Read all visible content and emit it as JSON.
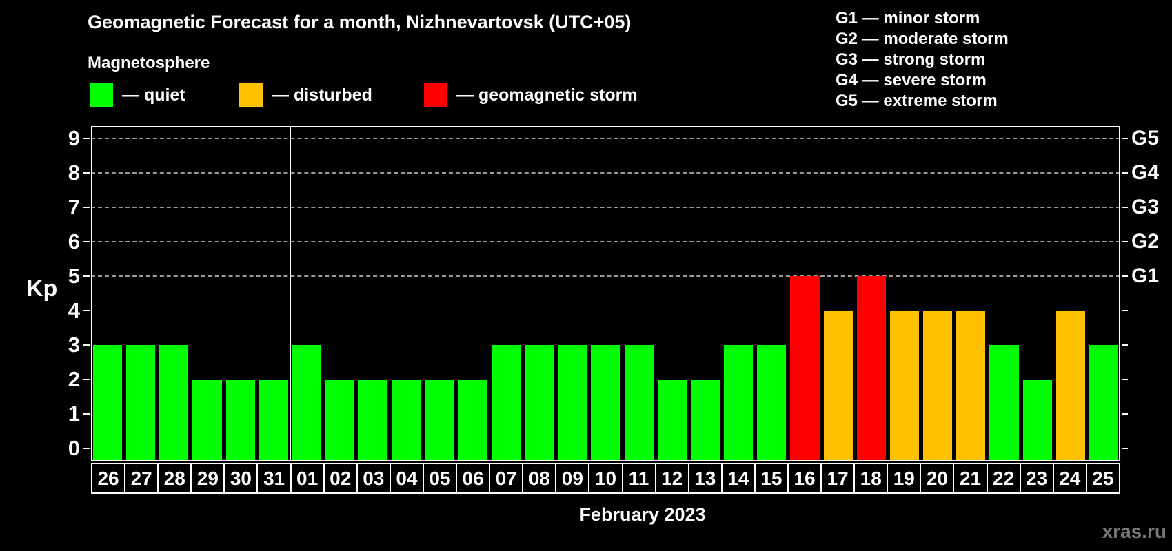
{
  "title": "Geomagnetic Forecast for a month, Nizhnevartovsk (UTC+05)",
  "subtitle": "Magnetosphere",
  "legend": {
    "items": [
      {
        "name": "quiet",
        "label": "— quiet",
        "color": "#00ff00"
      },
      {
        "name": "disturbed",
        "label": "— disturbed",
        "color": "#ffc000"
      },
      {
        "name": "storm",
        "label": "— geomagnetic storm",
        "color": "#ff0000"
      }
    ]
  },
  "g_legend": [
    "G1 — minor storm",
    "G2 — moderate storm",
    "G3 — strong storm",
    "G4 — severe storm",
    "G5 — extreme storm"
  ],
  "caption": "February 2023",
  "watermark": "xras.ru",
  "chart_data": {
    "type": "bar",
    "title": "Geomagnetic Forecast for a month, Nizhnevartovsk (UTC+05)",
    "xlabel": "February 2023",
    "ylabel": "Kp",
    "ylim": [
      0,
      9
    ],
    "grid": "dashed-at-storm-levels",
    "legend_position": "top",
    "categories": [
      "26",
      "27",
      "28",
      "29",
      "30",
      "31",
      "01",
      "02",
      "03",
      "04",
      "05",
      "06",
      "07",
      "08",
      "09",
      "10",
      "11",
      "12",
      "13",
      "14",
      "15",
      "16",
      "17",
      "18",
      "19",
      "20",
      "21",
      "22",
      "23",
      "24",
      "25"
    ],
    "values": [
      3,
      3,
      3,
      2,
      2,
      2,
      3,
      2,
      2,
      2,
      2,
      2,
      3,
      3,
      3,
      3,
      3,
      2,
      2,
      3,
      3,
      5,
      4,
      5,
      4,
      4,
      4,
      3,
      2,
      4,
      3
    ],
    "statuses": [
      "quiet",
      "quiet",
      "quiet",
      "quiet",
      "quiet",
      "quiet",
      "quiet",
      "quiet",
      "quiet",
      "quiet",
      "quiet",
      "quiet",
      "quiet",
      "quiet",
      "quiet",
      "quiet",
      "quiet",
      "quiet",
      "quiet",
      "quiet",
      "quiet",
      "storm",
      "disturbed",
      "storm",
      "disturbed",
      "disturbed",
      "disturbed",
      "quiet",
      "quiet",
      "disturbed",
      "quiet"
    ],
    "colors": {
      "quiet": "#00ff00",
      "disturbed": "#ffc000",
      "storm": "#ff0000"
    },
    "y_ticks": [
      0,
      1,
      2,
      3,
      4,
      5,
      6,
      7,
      8,
      9
    ],
    "grid_levels": [
      5,
      6,
      7,
      8,
      9
    ],
    "right_axis": [
      {
        "kp": 5,
        "label": "G1"
      },
      {
        "kp": 6,
        "label": "G2"
      },
      {
        "kp": 7,
        "label": "G3"
      },
      {
        "kp": 8,
        "label": "G4"
      },
      {
        "kp": 9,
        "label": "G5"
      }
    ],
    "month_separator_after": "31"
  }
}
